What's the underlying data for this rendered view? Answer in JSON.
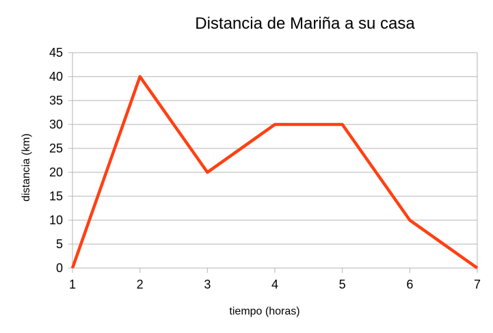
{
  "chart_data": {
    "type": "line",
    "title": "Distancia de Mariña a su casa",
    "xlabel": "tiempo (horas)",
    "ylabel": "distancia (km)",
    "x": [
      1,
      2,
      3,
      4,
      5,
      6,
      7
    ],
    "series": [
      {
        "values": [
          0,
          40,
          20,
          30,
          30,
          10,
          0
        ],
        "color": "#ff4013"
      }
    ],
    "xlim": [
      1,
      7
    ],
    "ylim": [
      0,
      45
    ],
    "xticks": [
      1,
      2,
      3,
      4,
      5,
      6,
      7
    ],
    "yticks": [
      0,
      5,
      10,
      15,
      20,
      25,
      30,
      35,
      40,
      45
    ],
    "grid": "horizontal",
    "legend": "none"
  }
}
